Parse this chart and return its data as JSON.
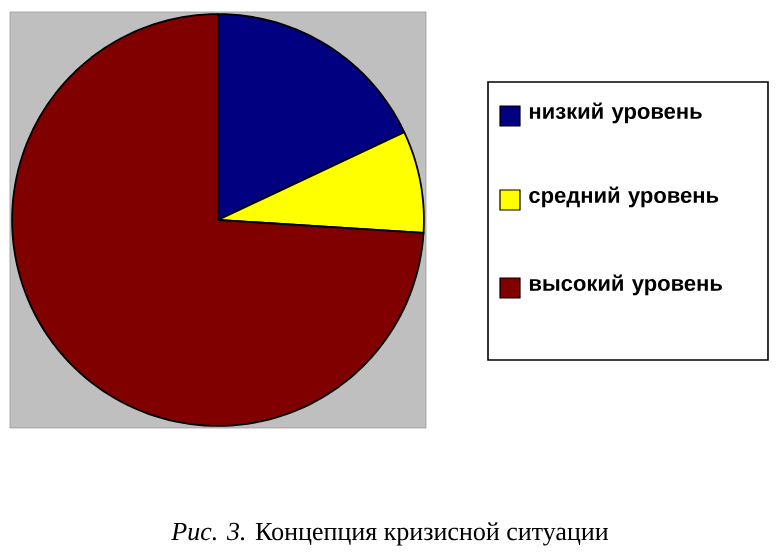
{
  "chart_data": {
    "type": "pie",
    "categories": [
      "низкий уровень",
      "средний уровень",
      "высокий уровень"
    ],
    "values": [
      18,
      8,
      74
    ],
    "colors": [
      "#000080",
      "#ffff00",
      "#800000"
    ],
    "legend": "right",
    "annotations": [
      "*Рис. 3.* Концепция кризисной ситуации"
    ]
  }
}
